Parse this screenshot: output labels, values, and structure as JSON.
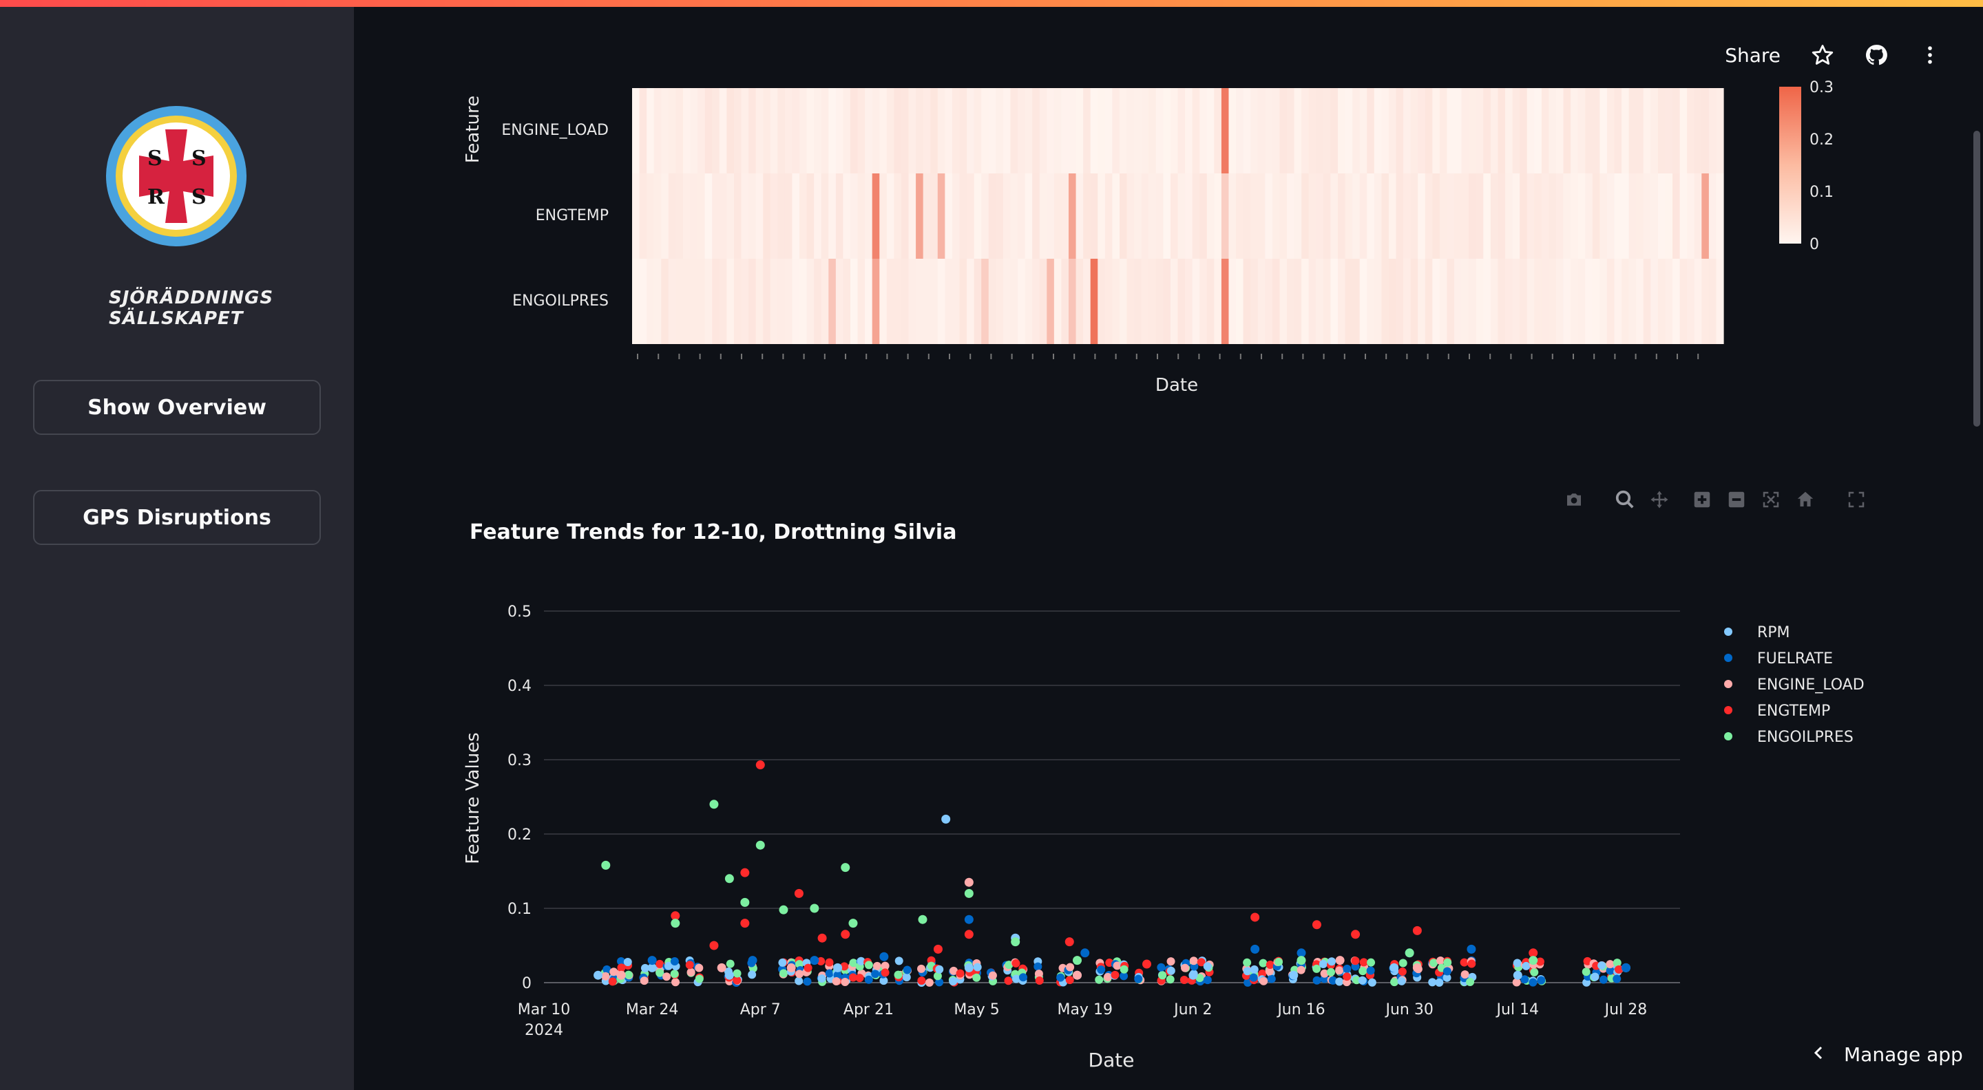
{
  "sidebar": {
    "brand": [
      "SJÖRÄDDNINGS",
      "SÄLLSKAPET"
    ],
    "logo_letters": [
      "S",
      "S",
      "R",
      "S"
    ],
    "buttons": [
      "Show Overview",
      "GPS Disruptions"
    ]
  },
  "header": {
    "share_label": "Share",
    "icons": [
      "star-icon",
      "github-icon",
      "more-vert-icon"
    ]
  },
  "colors": {
    "rpm": "#83c9ff",
    "fuelrate": "#0068c9",
    "engine_load": "#ffabab",
    "engtemp": "#ff2b2b",
    "engoilpres": "#7defa1"
  },
  "heatmap": {
    "ylabel": "Feature",
    "xlabel": "Date",
    "rows": [
      "ENGINE_LOAD",
      "ENGTEMP",
      "ENGOILPRES"
    ],
    "colorbar_ticks": [
      "0.3",
      "0.2",
      "0.1",
      "0"
    ]
  },
  "toolbar": {
    "icons": [
      "camera-icon",
      "zoom-icon",
      "pan-icon",
      "zoom-in-icon",
      "zoom-out-icon",
      "autoscale-icon",
      "reset-axes-icon",
      "fullscreen-icon"
    ]
  },
  "scatter": {
    "title": "Feature Trends for 12-10, Drottning Silvia",
    "xlabel": "Date",
    "ylabel": "Feature Values",
    "x_ticks": [
      "Mar 10",
      "Mar 24",
      "Apr 7",
      "Apr 21",
      "May 5",
      "May 19",
      "Jun 2",
      "Jun 16",
      "Jun 30",
      "Jul 14",
      "Jul 28"
    ],
    "x_year": "2024",
    "y_ticks": [
      "0",
      "0.1",
      "0.2",
      "0.3",
      "0.4",
      "0.5"
    ],
    "legend": [
      "RPM",
      "FUELRATE",
      "ENGINE_LOAD",
      "ENGTEMP",
      "ENGOILPRES"
    ]
  },
  "chart_data": {
    "type": "scatter",
    "title": "Feature Trends for 12-10, Drottning Silvia",
    "xlabel": "Date",
    "ylabel": "Feature Values",
    "ylim": [
      0,
      0.5
    ],
    "xlim": [
      "2024-03-10",
      "2024-08-04"
    ],
    "legend_position": "right",
    "grid": true,
    "series": [
      {
        "name": "RPM",
        "points": [
          [
            "2024-03-17",
            0.01
          ],
          [
            "2024-03-24",
            0.02
          ],
          [
            "2024-04-03",
            0.01
          ],
          [
            "2024-04-17",
            0.02
          ],
          [
            "2024-05-01",
            0.22
          ],
          [
            "2024-05-04",
            0.02
          ],
          [
            "2024-05-10",
            0.06
          ],
          [
            "2024-05-18",
            0.01
          ],
          [
            "2024-06-02",
            0.01
          ],
          [
            "2024-06-15",
            0.01
          ],
          [
            "2024-06-28",
            0.02
          ],
          [
            "2024-07-14",
            0.01
          ],
          [
            "2024-07-28",
            0.02
          ]
        ]
      },
      {
        "name": "FUELRATE",
        "points": [
          [
            "2024-03-24",
            0.03
          ],
          [
            "2024-04-06",
            0.03
          ],
          [
            "2024-04-14",
            0.03
          ],
          [
            "2024-04-23",
            0.035
          ],
          [
            "2024-05-04",
            0.085
          ],
          [
            "2024-05-19",
            0.04
          ],
          [
            "2024-06-10",
            0.045
          ],
          [
            "2024-06-16",
            0.04
          ],
          [
            "2024-06-30",
            0.04
          ],
          [
            "2024-07-08",
            0.045
          ],
          [
            "2024-07-28",
            0.02
          ]
        ]
      },
      {
        "name": "ENGINE_LOAD",
        "points": [
          [
            "2024-03-20",
            0.01
          ],
          [
            "2024-04-02",
            0.02
          ],
          [
            "2024-04-11",
            0.02
          ],
          [
            "2024-05-04",
            0.135
          ],
          [
            "2024-05-18",
            0.01
          ],
          [
            "2024-06-21",
            0.03
          ],
          [
            "2024-07-01",
            0.02
          ]
        ]
      },
      {
        "name": "ENGTEMP",
        "points": [
          [
            "2024-03-27",
            0.09
          ],
          [
            "2024-04-01",
            0.05
          ],
          [
            "2024-04-05",
            0.08
          ],
          [
            "2024-04-07",
            0.293
          ],
          [
            "2024-04-05",
            0.148
          ],
          [
            "2024-04-12",
            0.12
          ],
          [
            "2024-04-15",
            0.06
          ],
          [
            "2024-04-18",
            0.065
          ],
          [
            "2024-04-30",
            0.045
          ],
          [
            "2024-05-04",
            0.065
          ],
          [
            "2024-05-17",
            0.055
          ],
          [
            "2024-05-27",
            0.025
          ],
          [
            "2024-06-10",
            0.088
          ],
          [
            "2024-06-18",
            0.078
          ],
          [
            "2024-06-23",
            0.065
          ],
          [
            "2024-07-01",
            0.07
          ],
          [
            "2024-07-16",
            0.04
          ]
        ]
      },
      {
        "name": "ENGOILPRES",
        "points": [
          [
            "2024-03-18",
            0.158
          ],
          [
            "2024-03-27",
            0.08
          ],
          [
            "2024-04-01",
            0.24
          ],
          [
            "2024-04-03",
            0.14
          ],
          [
            "2024-04-05",
            0.108
          ],
          [
            "2024-04-07",
            0.185
          ],
          [
            "2024-04-10",
            0.098
          ],
          [
            "2024-04-14",
            0.1
          ],
          [
            "2024-04-18",
            0.155
          ],
          [
            "2024-04-19",
            0.08
          ],
          [
            "2024-04-28",
            0.085
          ],
          [
            "2024-05-04",
            0.12
          ],
          [
            "2024-05-10",
            0.055
          ],
          [
            "2024-05-18",
            0.03
          ],
          [
            "2024-06-16",
            0.03
          ],
          [
            "2024-06-30",
            0.04
          ],
          [
            "2024-07-16",
            0.03
          ]
        ]
      }
    ]
  }
}
